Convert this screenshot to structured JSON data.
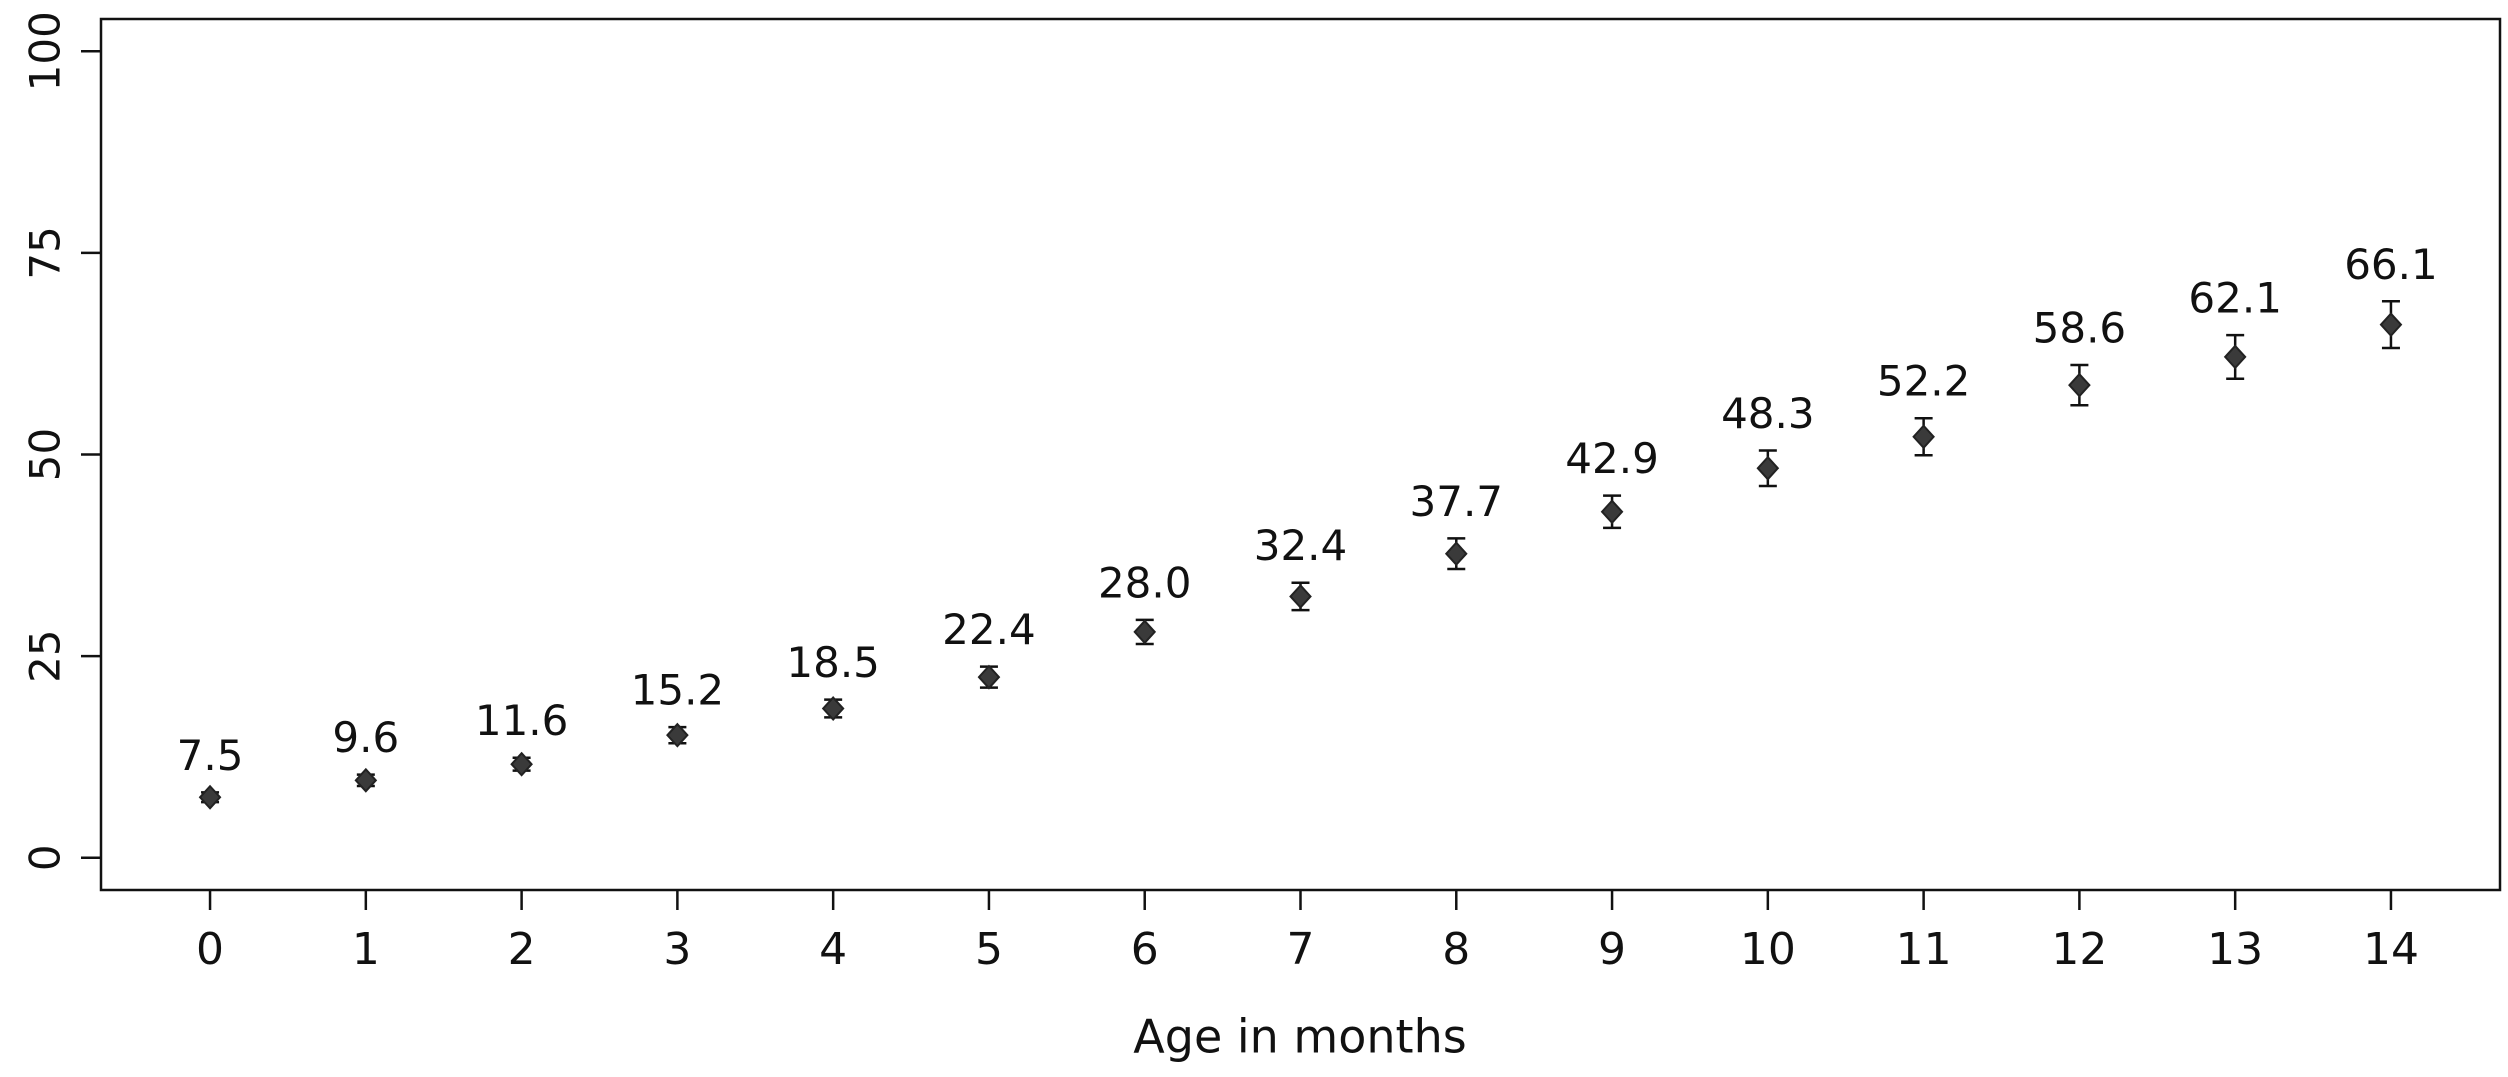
{
  "chart_data": {
    "type": "scatter",
    "x_label": "Age in months",
    "x": [
      0,
      1,
      2,
      3,
      4,
      5,
      6,
      7,
      8,
      9,
      10,
      11,
      12,
      13,
      14
    ],
    "values": [
      7.5,
      9.6,
      11.6,
      15.2,
      18.5,
      22.4,
      28,
      32.4,
      37.7,
      42.9,
      48.3,
      52.2,
      58.6,
      62.1,
      66.1
    ],
    "value_labels": [
      "7.5",
      "9.6",
      "11.6",
      "15.2",
      "18.5",
      "22.4",
      "28.0",
      "32.4",
      "37.7",
      "42.9",
      "48.3",
      "52.2",
      "58.6",
      "62.1",
      "66.1"
    ],
    "errors": [
      0.6,
      0.7,
      0.8,
      1.0,
      1.1,
      1.3,
      1.5,
      1.7,
      1.9,
      2.0,
      2.2,
      2.3,
      2.5,
      2.7,
      2.9
    ],
    "color": "#3a3a3a",
    "xlim": [
      -0.7,
      14.7
    ],
    "xticks": [
      0,
      1,
      2,
      3,
      4,
      5,
      6,
      7,
      8,
      9,
      10,
      11,
      12,
      13,
      14
    ],
    "ylim": [
      -4,
      104
    ],
    "yticks": [
      0,
      25,
      50,
      75,
      100
    ]
  }
}
